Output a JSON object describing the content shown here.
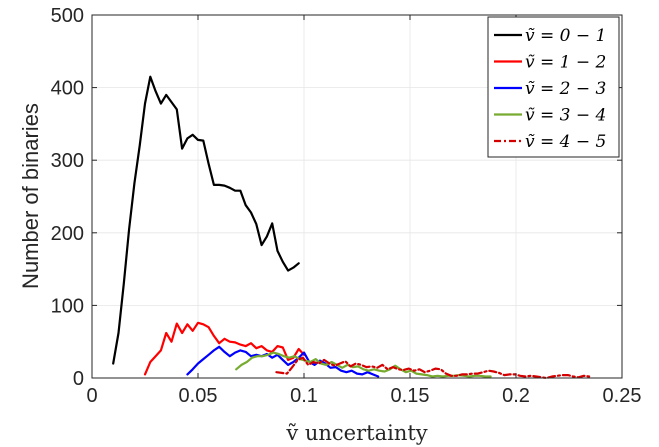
{
  "chart_data": {
    "type": "line",
    "title": "",
    "xlabel": "ṽ uncertainty",
    "ylabel": "Number of binaries",
    "xlim": [
      0,
      0.25
    ],
    "ylim": [
      0,
      500
    ],
    "xticks": [
      0,
      0.05,
      0.1,
      0.15,
      0.2,
      0.25
    ],
    "xtick_labels": [
      "0",
      "0.05",
      "0.1",
      "0.15",
      "0.2",
      "0.25"
    ],
    "yticks": [
      0,
      100,
      200,
      300,
      400,
      500
    ],
    "ytick_labels": [
      "0",
      "100",
      "200",
      "300",
      "400",
      "500"
    ],
    "grid": true,
    "legend_position": "top-right",
    "series": [
      {
        "name": "ṽ = 0 − 1",
        "color": "#000000",
        "dash": "solid",
        "x": [
          0.01,
          0.0125,
          0.015,
          0.0175,
          0.02,
          0.0225,
          0.025,
          0.0275,
          0.03,
          0.0325,
          0.035,
          0.0375,
          0.04,
          0.0425,
          0.045,
          0.0475,
          0.05,
          0.0525,
          0.055,
          0.0575,
          0.06,
          0.0625,
          0.065,
          0.0675,
          0.07,
          0.0725,
          0.075,
          0.0775,
          0.08,
          0.0825,
          0.085,
          0.0875,
          0.09,
          0.0925,
          0.095,
          0.0975
        ],
        "y": [
          20,
          62,
          130,
          205,
          268,
          320,
          378,
          415,
          395,
          378,
          390,
          380,
          370,
          316,
          330,
          335,
          328,
          327,
          295,
          266,
          266,
          265,
          262,
          258,
          258,
          238,
          228,
          212,
          183,
          195,
          213,
          175,
          160,
          148,
          152,
          158
        ]
      },
      {
        "name": "ṽ = 1 − 2",
        "color": "#ff0000",
        "dash": "solid",
        "x": [
          0.025,
          0.0275,
          0.03,
          0.0325,
          0.035,
          0.0375,
          0.04,
          0.0425,
          0.045,
          0.0475,
          0.05,
          0.0525,
          0.055,
          0.0575,
          0.06,
          0.0625,
          0.065,
          0.0675,
          0.07,
          0.0725,
          0.075,
          0.0775,
          0.08,
          0.0825,
          0.085,
          0.0875,
          0.09,
          0.0925,
          0.095,
          0.0975,
          0.1
        ],
        "y": [
          5,
          22,
          30,
          38,
          62,
          50,
          75,
          62,
          74,
          65,
          76,
          74,
          70,
          58,
          48,
          54,
          50,
          49,
          46,
          44,
          48,
          41,
          44,
          38,
          36,
          44,
          42,
          25,
          28,
          40,
          32
        ]
      },
      {
        "name": "ṽ = 2 − 3",
        "color": "#0000ff",
        "dash": "solid",
        "x": [
          0.045,
          0.0475,
          0.05,
          0.0525,
          0.055,
          0.0575,
          0.06,
          0.0625,
          0.065,
          0.0675,
          0.07,
          0.0725,
          0.075,
          0.0775,
          0.08,
          0.0825,
          0.085,
          0.0875,
          0.09,
          0.0925,
          0.095,
          0.0975,
          0.1,
          0.1025,
          0.105,
          0.1075,
          0.11,
          0.1125,
          0.115,
          0.1175,
          0.12,
          0.1225,
          0.125,
          0.1275,
          0.13,
          0.1325,
          0.135
        ],
        "y": [
          5,
          12,
          20,
          26,
          32,
          38,
          43,
          36,
          30,
          35,
          38,
          36,
          30,
          32,
          30,
          33,
          28,
          32,
          25,
          18,
          22,
          28,
          35,
          22,
          18,
          24,
          20,
          14,
          15,
          10,
          8,
          10,
          6,
          5,
          8,
          5,
          2
        ]
      },
      {
        "name": "ṽ = 3 − 4",
        "color": "#77ac30",
        "dash": "solid",
        "x": [
          0.068,
          0.0705,
          0.073,
          0.0755,
          0.078,
          0.0805,
          0.083,
          0.0855,
          0.088,
          0.0905,
          0.093,
          0.0955,
          0.098,
          0.1005,
          0.103,
          0.1055,
          0.108,
          0.1105,
          0.113,
          0.1155,
          0.118,
          0.1205,
          0.123,
          0.1255,
          0.128,
          0.1305,
          0.133,
          0.1355,
          0.138,
          0.1405,
          0.143,
          0.1455,
          0.148,
          0.1505,
          0.153,
          0.1555,
          0.158,
          0.1605,
          0.163,
          0.1655,
          0.168,
          0.1705,
          0.173,
          0.1755,
          0.178,
          0.1805,
          0.183,
          0.1855,
          0.188
        ],
        "y": [
          12,
          18,
          22,
          28,
          30,
          30,
          32,
          35,
          33,
          30,
          28,
          30,
          26,
          24,
          22,
          26,
          20,
          18,
          22,
          18,
          14,
          18,
          15,
          16,
          12,
          10,
          12,
          10,
          9,
          12,
          17,
          12,
          8,
          10,
          6,
          5,
          4,
          2,
          3,
          2,
          3,
          3,
          4,
          3,
          2,
          3,
          3,
          2,
          2
        ]
      },
      {
        "name": "ṽ = 4 − 5",
        "color": "#d40000",
        "dash": "dashdot",
        "x": [
          0.087,
          0.0895,
          0.092,
          0.0945,
          0.097,
          0.0995,
          0.102,
          0.1045,
          0.107,
          0.1095,
          0.112,
          0.1145,
          0.117,
          0.1195,
          0.122,
          0.1245,
          0.127,
          0.1295,
          0.132,
          0.1345,
          0.137,
          0.1395,
          0.142,
          0.1445,
          0.147,
          0.1495,
          0.152,
          0.1545,
          0.157,
          0.1595,
          0.162,
          0.1645,
          0.167,
          0.1695,
          0.172,
          0.1745,
          0.177,
          0.1795,
          0.182,
          0.1845,
          0.187,
          0.1895,
          0.192,
          0.1945,
          0.197,
          0.1995,
          0.202,
          0.2045,
          0.207,
          0.2095,
          0.212,
          0.2145,
          0.217,
          0.2195,
          0.222,
          0.2245,
          0.227,
          0.2295,
          0.232,
          0.2345
        ],
        "y": [
          8,
          7,
          6,
          15,
          25,
          28,
          18,
          22,
          20,
          25,
          20,
          17,
          20,
          23,
          16,
          20,
          18,
          15,
          16,
          14,
          18,
          12,
          15,
          12,
          11,
          13,
          10,
          12,
          8,
          10,
          13,
          12,
          6,
          3,
          3,
          5,
          5,
          6,
          6,
          8,
          10,
          9,
          7,
          4,
          5,
          5,
          3,
          2,
          3,
          2,
          1,
          0,
          2,
          3,
          4,
          4,
          2,
          1,
          3,
          2
        ]
      }
    ]
  }
}
